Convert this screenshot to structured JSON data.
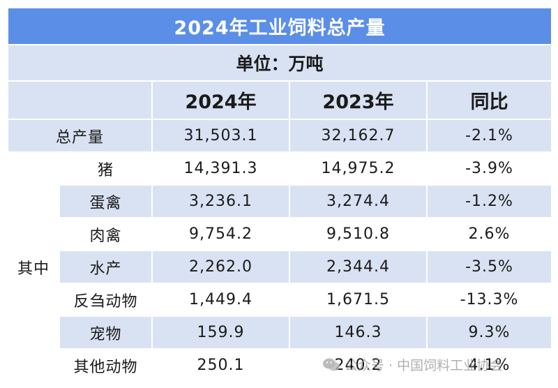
{
  "table": {
    "title": "2024年工业饲料总产量",
    "unit": "单位：万吨",
    "headers": [
      "2024年",
      "2023年",
      "同比"
    ],
    "total": {
      "label": "总产量",
      "y2024": "31,503.1",
      "y2023": "32,162.7",
      "yoy": "-2.1%"
    },
    "group_label": "其中",
    "rows": [
      {
        "label": "猪",
        "y2024": "14,391.3",
        "y2023": "14,975.2",
        "yoy": "-3.9%"
      },
      {
        "label": "蛋禽",
        "y2024": "3,236.1",
        "y2023": "3,274.4",
        "yoy": "-1.2%"
      },
      {
        "label": "肉禽",
        "y2024": "9,754.2",
        "y2023": "9,510.8",
        "yoy": "2.6%"
      },
      {
        "label": "水产",
        "y2024": "2,262.0",
        "y2023": "2,344.4",
        "yoy": "-3.5%"
      },
      {
        "label": "反刍动物",
        "y2024": "1,449.4",
        "y2023": "1,671.5",
        "yoy": "-13.3%"
      },
      {
        "label": "宠物",
        "y2024": "159.9",
        "y2023": "146.3",
        "yoy": "9.3%"
      },
      {
        "label": "其他动物",
        "y2024": "250.1",
        "y2023": "240.2",
        "yoy": "4.1%"
      }
    ]
  },
  "watermark": {
    "text": "公众号 · 中国饲料工业协会",
    "icon": "wechat-icon"
  }
}
